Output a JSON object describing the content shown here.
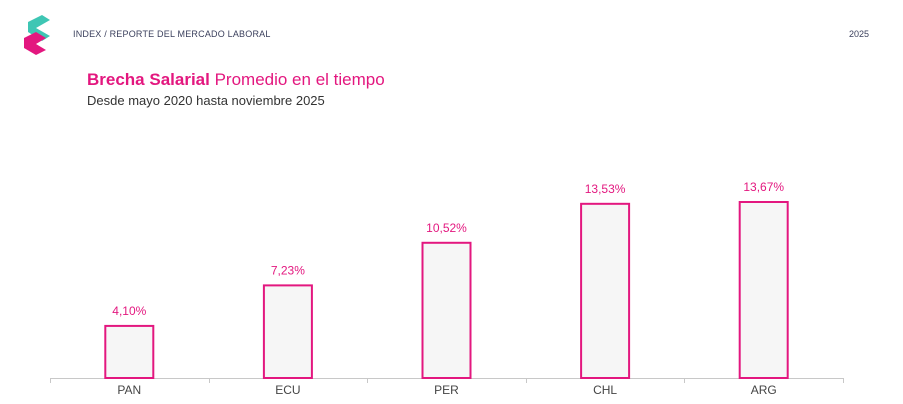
{
  "header": {
    "text": "INDEX / REPORTE DEL MERCADO LABORAL",
    "year": "2025"
  },
  "colors": {
    "accent": "#e3177f",
    "logo_teal": "#3ec6b4",
    "bar_fill": "#f6f6f6",
    "axis": "#c8c8c8"
  },
  "chart_data": {
    "type": "bar",
    "title_bold": "Brecha Salarial",
    "title_rest": " Promedio en el tiempo",
    "subtitle": "Desde mayo 2020 hasta noviembre 2025",
    "categories": [
      "PAN",
      "ECU",
      "PER",
      "CHL",
      "ARG"
    ],
    "values": [
      4.1,
      7.23,
      10.52,
      13.53,
      13.67
    ],
    "value_labels": [
      "4,10%",
      "7,23%",
      "10,52%",
      "13,53%",
      "13,67%"
    ],
    "ylim": [
      0,
      17.3
    ],
    "grid": false,
    "legend": "none"
  }
}
